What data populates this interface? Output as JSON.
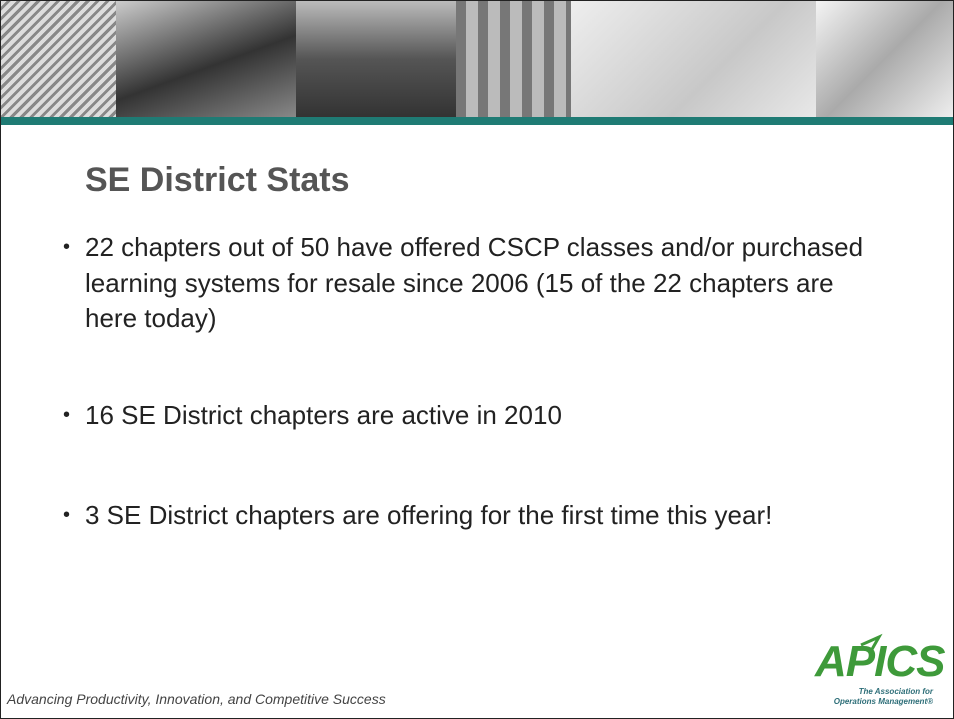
{
  "slide": {
    "title": "SE District Stats",
    "bullets": [
      "22 chapters out of 50 have offered CSCP classes and/or purchased learning systems for resale since 2006 (15 of the 22 chapters are here today)",
      "16 SE District chapters are active in 2010",
      "3 SE District chapters are offering for the first time this year!"
    ],
    "footer": "Advancing Productivity, Innovation, and Competitive Success",
    "logo": {
      "name": "APICS",
      "tagline": [
        "The Association for",
        "Operations Management®"
      ]
    }
  }
}
